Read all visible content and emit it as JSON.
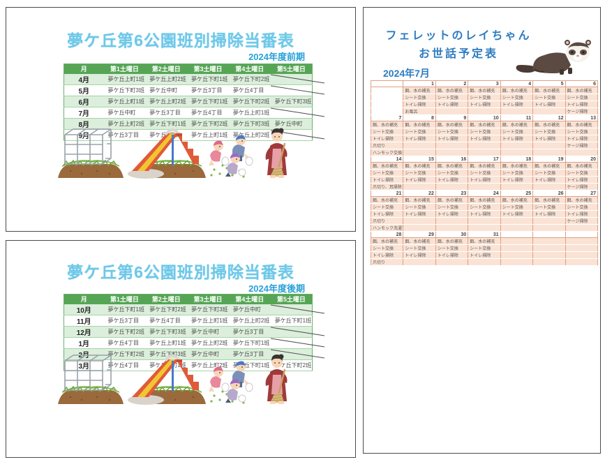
{
  "colors": {
    "title_blue": "#6fc8e8",
    "term_blue": "#29a0d8",
    "roster_header_green": "#55a555",
    "roster_row_green": "#dceedc",
    "roster_border_green": "#69b069",
    "calendar_border_orange": "#dfa083",
    "calendar_cell_peach": "#fae3d5",
    "page2_title_blue": "#2d7cc0"
  },
  "page1": {
    "title": "夢ケ丘第6公園班別掃除当番表",
    "subtitle": "2024年度前期",
    "table": {
      "headers": [
        "月",
        "第1土曜日",
        "第2土曜日",
        "第3土曜日",
        "第4土曜日",
        "第5土曜日"
      ],
      "rows": [
        {
          "month": "4月",
          "cells": [
            "夢ケ丘上町1班",
            "夢ケ丘上町2班",
            "夢ケ丘下町1班",
            "夢ケ丘下町2班",
            ""
          ]
        },
        {
          "month": "5月",
          "cells": [
            "夢ケ丘下町3班",
            "夢ケ丘中町",
            "夢ケ丘3丁目",
            "夢ケ丘4丁目",
            ""
          ]
        },
        {
          "month": "6月",
          "cells": [
            "夢ケ丘上町1班",
            "夢ケ丘上町2班",
            "夢ケ丘下町1班",
            "夢ケ丘下町2班",
            "夢ケ丘下町3班"
          ]
        },
        {
          "month": "7月",
          "cells": [
            "夢ケ丘中町",
            "夢ケ丘3丁目",
            "夢ケ丘4丁目",
            "夢ケ丘上町1班",
            ""
          ]
        },
        {
          "month": "8月",
          "cells": [
            "夢ケ丘上町2班",
            "夢ケ丘下町1班",
            "夢ケ丘下町2班",
            "夢ケ丘下町3班",
            "夢ケ丘中町"
          ]
        },
        {
          "month": "9月",
          "cells": [
            "夢ケ丘3丁目",
            "夢ケ丘4丁目",
            "夢ケ丘上町1班",
            "夢ケ丘上町2班",
            ""
          ]
        }
      ]
    },
    "illustrations": [
      "jungle-gym",
      "slide",
      "children-cleaning",
      "sweeping-woman"
    ]
  },
  "page3": {
    "title": "夢ケ丘第6公園班別掃除当番表",
    "subtitle": "2024年度後期",
    "table": {
      "headers": [
        "月",
        "第1土曜日",
        "第2土曜日",
        "第3土曜日",
        "第4土曜日",
        "第5土曜日"
      ],
      "rows": [
        {
          "month": "10月",
          "cells": [
            "夢ケ丘下町1班",
            "夢ケ丘下町2班",
            "夢ケ丘下町3班",
            "夢ケ丘中町",
            ""
          ]
        },
        {
          "month": "11月",
          "cells": [
            "夢ケ丘3丁目",
            "夢ケ丘4丁目",
            "夢ケ丘上町1班",
            "夢ケ丘上町2班",
            "夢ケ丘下町1班"
          ]
        },
        {
          "month": "12月",
          "cells": [
            "夢ケ丘下町2班",
            "夢ケ丘下町3班",
            "夢ケ丘中町",
            "夢ケ丘3丁目",
            ""
          ]
        },
        {
          "month": "1月",
          "cells": [
            "夢ケ丘4丁目",
            "夢ケ丘上町1班",
            "夢ケ丘上町2班",
            "夢ケ丘下町1班",
            ""
          ]
        },
        {
          "month": "2月",
          "cells": [
            "夢ケ丘下町2班",
            "夢ケ丘下町3班",
            "夢ケ丘中町",
            "夢ケ丘3丁目",
            ""
          ]
        },
        {
          "month": "3月",
          "cells": [
            "夢ケ丘4丁目",
            "夢ケ丘上町1班",
            "夢ケ丘上町2班",
            "夢ケ丘下町1班",
            "夢ケ丘下町2班"
          ]
        }
      ]
    },
    "illustrations": [
      "jungle-gym",
      "slide",
      "children-cleaning",
      "sweeping-woman"
    ]
  },
  "page2": {
    "title_line1": "フェレットのレイちゃん",
    "title_line2": "お世話予定表",
    "month_label": "2024年7月",
    "illustrations": [
      "ferret"
    ],
    "calendar": {
      "weeks": [
        {
          "dates": [
            "",
            "1",
            "2",
            "3",
            "4",
            "5",
            "6"
          ],
          "unshaded_cols": [
            0
          ],
          "lines": [
            [
              "",
              "餌、水の補充",
              "餌、水の補充",
              "餌、水の補充",
              "餌、水の補充",
              "餌、水の補充",
              "餌、水の補充"
            ],
            [
              "",
              "シート交換",
              "シート交換",
              "シート交換",
              "シート交換",
              "シート交換",
              "シート交換"
            ],
            [
              "",
              "トイレ掃除",
              "トイレ掃除",
              "トイレ掃除",
              "トイレ掃除",
              "トイレ掃除",
              "トイレ掃除"
            ],
            [
              "",
              "お風呂",
              "",
              "",
              "",
              "",
              "ケージ掃除"
            ]
          ]
        },
        {
          "dates": [
            "7",
            "8",
            "9",
            "10",
            "11",
            "12",
            "13"
          ],
          "unshaded_cols": [],
          "lines": [
            [
              "餌、水の補充",
              "餌、水の補充",
              "餌、水の補充",
              "餌、水の補充",
              "餌、水の補充",
              "餌、水の補充",
              "餌、水の補充"
            ],
            [
              "シート交換",
              "シート交換",
              "シート交換",
              "シート交換",
              "シート交換",
              "シート交換",
              "シート交換"
            ],
            [
              "トイレ掃除",
              "トイレ掃除",
              "トイレ掃除",
              "トイレ掃除",
              "トイレ掃除",
              "トイレ掃除",
              "トイレ掃除"
            ],
            [
              "爪切り",
              "",
              "",
              "",
              "",
              "",
              "ケージ掃除"
            ],
            [
              "ハンモック交換",
              "",
              "",
              "",
              "",
              "",
              ""
            ]
          ]
        },
        {
          "dates": [
            "14",
            "15",
            "16",
            "17",
            "18",
            "19",
            "20"
          ],
          "unshaded_cols": [],
          "lines": [
            [
              "餌、水の補充",
              "餌、水の補充",
              "餌、水の補充",
              "餌、水の補充",
              "餌、水の補充",
              "餌、水の補充",
              "餌、水の補充"
            ],
            [
              "シート交換",
              "シート交換",
              "シート交換",
              "シート交換",
              "シート交換",
              "シート交換",
              "シート交換"
            ],
            [
              "トイレ掃除",
              "トイレ掃除",
              "トイレ掃除",
              "トイレ掃除",
              "トイレ掃除",
              "トイレ掃除",
              "トイレ掃除"
            ],
            [
              "爪切り、耳掃除",
              "",
              "",
              "",
              "",
              "",
              "ケージ掃除"
            ]
          ]
        },
        {
          "dates": [
            "21",
            "22",
            "23",
            "24",
            "25",
            "26",
            "27"
          ],
          "unshaded_cols": [],
          "lines": [
            [
              "餌、水の補充",
              "餌、水の補充",
              "餌、水の補充",
              "餌、水の補充",
              "餌、水の補充",
              "餌、水の補充",
              "餌、水の補充"
            ],
            [
              "シート交換",
              "シート交換",
              "シート交換",
              "シート交換",
              "シート交換",
              "シート交換",
              "シート交換"
            ],
            [
              "トイレ掃除",
              "トイレ掃除",
              "トイレ掃除",
              "トイレ掃除",
              "トイレ掃除",
              "トイレ掃除",
              "トイレ掃除"
            ],
            [
              "爪切り",
              "",
              "",
              "",
              "",
              "",
              "ケージ掃除"
            ],
            [
              "ハンモック洗濯",
              "",
              "",
              "",
              "",
              "",
              ""
            ]
          ]
        },
        {
          "dates": [
            "28",
            "29",
            "30",
            "31",
            "",
            "",
            ""
          ],
          "unshaded_cols": [],
          "lines": [
            [
              "餌、水の補充",
              "餌、水の補充",
              "餌、水の補充",
              "餌、水の補充",
              "",
              "",
              ""
            ],
            [
              "シート交換",
              "シート交換",
              "シート交換",
              "シート交換",
              "",
              "",
              ""
            ],
            [
              "トイレ掃除",
              "トイレ掃除",
              "トイレ掃除",
              "トイレ掃除",
              "",
              "",
              ""
            ],
            [
              "爪切り",
              "",
              "",
              "",
              "",
              "",
              ""
            ]
          ]
        }
      ]
    }
  }
}
